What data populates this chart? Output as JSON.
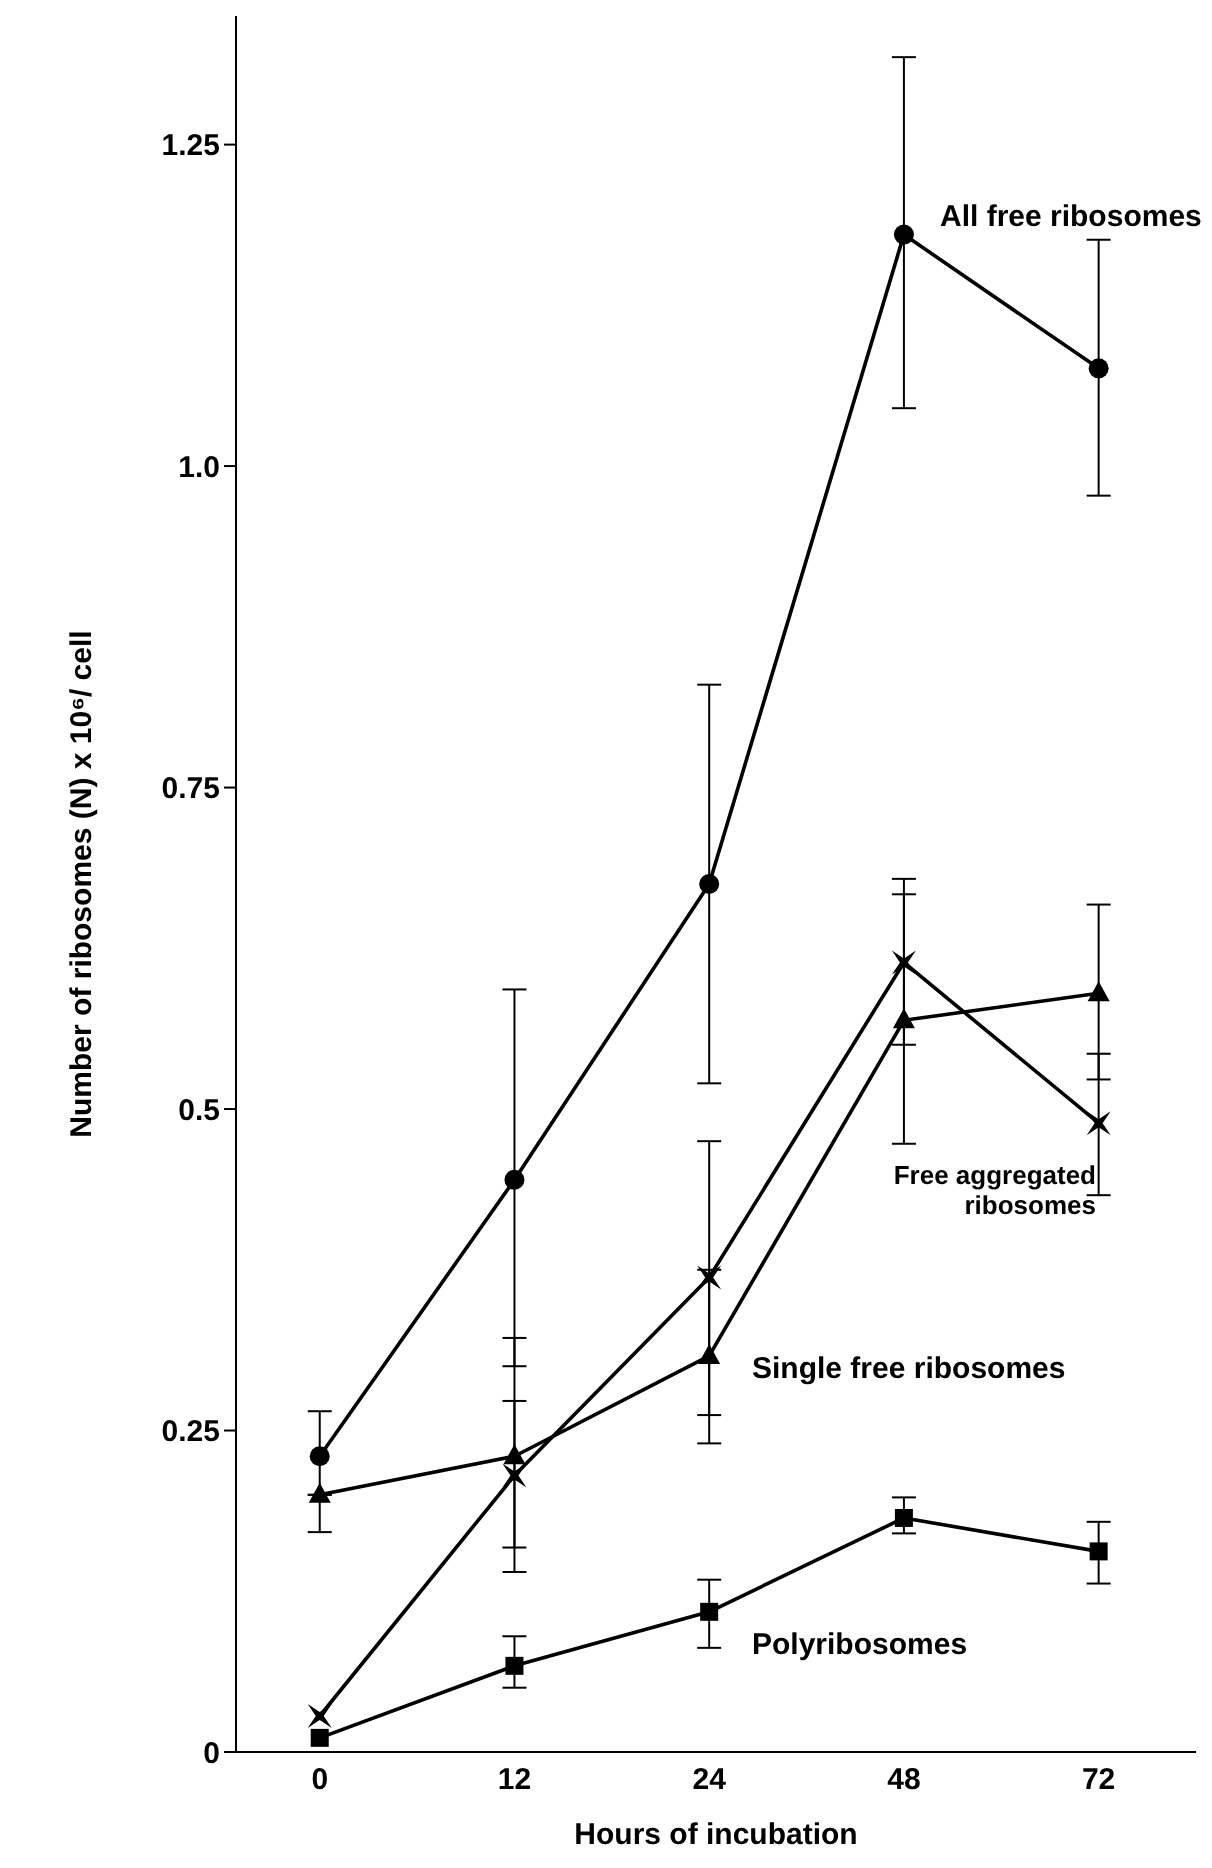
{
  "chart_data": {
    "type": "line",
    "xlabel": "Hours of incubation",
    "ylabel": "Number of ribosomes (N) x 10⁶/ cell",
    "categories": [
      "0",
      "12",
      "24",
      "48",
      "72"
    ],
    "ylim": [
      0,
      1.35
    ],
    "yticks": [
      0,
      0.25,
      {
        "value": 0.5,
        "label": "0.5"
      },
      0.75,
      {
        "value": 1,
        "label": "1.0"
      },
      1.25
    ],
    "grid": false,
    "legend": false,
    "line_style": "solid",
    "series": [
      {
        "name": "All free ribosomes",
        "color": "#000000",
        "marker": "circle",
        "values": [
          0.23,
          0.445,
          0.675,
          1.18,
          1.076
        ],
        "errors": [
          [
            0.2,
            0.265
          ],
          [
            0.3,
            0.593
          ],
          [
            0.52,
            0.83
          ],
          [
            1.045,
            1.318
          ],
          [
            0.977,
            1.176
          ]
        ]
      },
      {
        "name": "Single free ribosomes",
        "color": "#000000",
        "marker": "triangle",
        "values": [
          0.2,
          0.23,
          0.308,
          0.569,
          0.59
        ],
        "errors": [
          [
            0.171,
            0.2
          ],
          [
            0.14,
            0.322
          ],
          [
            0.24,
            0.375
          ],
          [
            0.473,
            0.667
          ],
          [
            0.523,
            0.659
          ]
        ]
      },
      {
        "name": "Free aggregated ribosomes",
        "color": "#000000",
        "marker": "star",
        "values": [
          0.028,
          0.215,
          0.369,
          0.614,
          0.489
        ],
        "errors": [
          null,
          [
            0.159,
            0.273
          ],
          [
            0.262,
            0.475
          ],
          [
            0.55,
            0.679
          ],
          [
            0.433,
            0.543
          ]
        ]
      },
      {
        "name": "Polyribosomes",
        "color": "#000000",
        "marker": "square",
        "values": [
          0.011,
          0.067,
          0.109,
          0.182,
          0.156
        ],
        "errors": [
          null,
          [
            0.05,
            0.09
          ],
          [
            0.081,
            0.134
          ],
          [
            0.17,
            0.198
          ],
          [
            0.131,
            0.179
          ]
        ]
      }
    ]
  }
}
